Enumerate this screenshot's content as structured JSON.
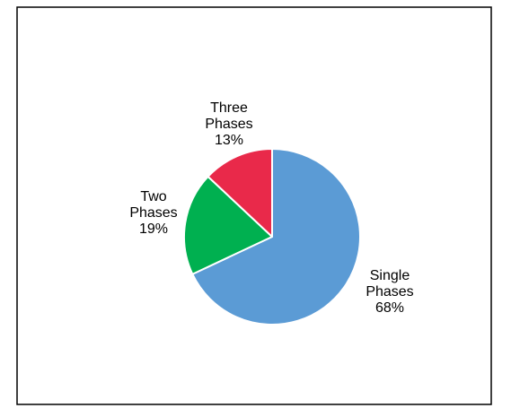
{
  "chart_data": {
    "type": "pie",
    "title": "",
    "slices": [
      {
        "line1": "Single",
        "line2": "Phases",
        "percent": "68%",
        "value": 68,
        "color": "#5b9bd5"
      },
      {
        "line1": "Two",
        "line2": "Phases",
        "percent": "19%",
        "value": 19,
        "color": "#00b050"
      },
      {
        "line1": "Three",
        "line2": "Phases",
        "percent": "13%",
        "value": 13,
        "color": "#e9294a"
      }
    ],
    "start": "12 o'clock",
    "direction": "clockwise",
    "legend": "none"
  }
}
